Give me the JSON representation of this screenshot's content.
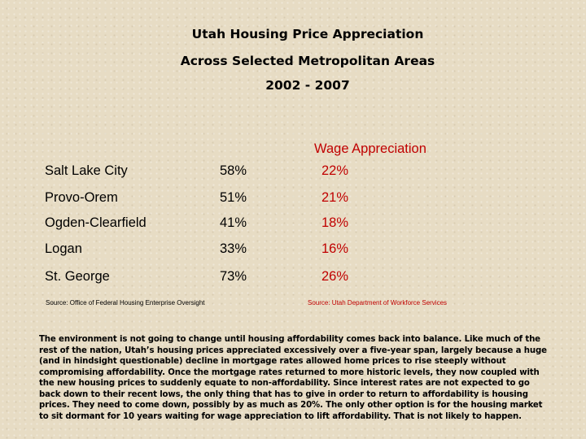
{
  "title": {
    "line1": "Utah Housing Price Appreciation",
    "line2": "Across Selected Metropolitan Areas",
    "line3": "2002 - 2007"
  },
  "table": {
    "wage_header": "Wage Appreciation",
    "rows": [
      {
        "city": "Salt Lake City",
        "price": "58%",
        "wage": "22%"
      },
      {
        "city": "Provo-Orem",
        "price": "51%",
        "wage": "21%"
      },
      {
        "city": "Ogden-Clearfield",
        "price": "41%",
        "wage": "18%"
      },
      {
        "city": "Logan",
        "price": "33%",
        "wage": "16%"
      },
      {
        "city": "St. George",
        "price": "73%",
        "wage": "26%"
      }
    ]
  },
  "sources": {
    "left": "Source: Office of Federal Housing Enterprise Oversight",
    "right": "Source: Utah Department of Workforce Services"
  },
  "colors": {
    "background": "#e7dcc4",
    "wage_text": "#c00000"
  },
  "paragraph": "The environment is not going to change until housing affordability comes back into balance. Like much of the rest of the nation, Utah’s housing prices appreciated excessively over a five-year span, largely because a huge (and in hindsight questionable) decline in mortgage rates allowed home prices to rise steeply without compromising affordability. Once the mortgage rates returned to more historic levels, they now coupled with the new housing prices to suddenly equate to non-affordability. Since interest rates are not expected to go back down to their recent lows, the only thing that has to give in order to return to affordability is housing prices. They need to come down, possibly by as much as 20%. The only other option is for the housing market to sit dormant for 10 years waiting for wage appreciation to lift affordability. That is not likely to happen."
}
